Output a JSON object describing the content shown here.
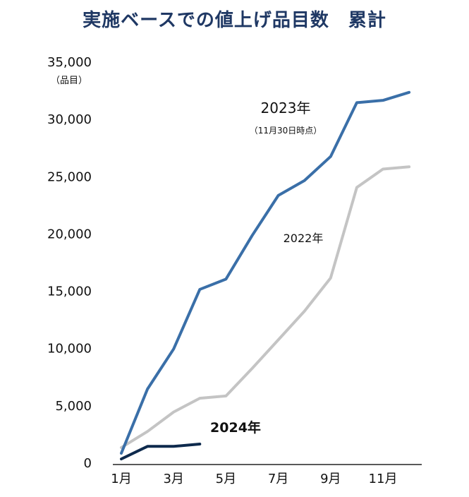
{
  "chart_data": {
    "type": "line",
    "title": "実施ベースでの値上げ品目数　累計",
    "unit_label": "（品目）",
    "ylim": [
      0,
      35000
    ],
    "yticks": [
      0,
      5000,
      10000,
      15000,
      20000,
      25000,
      30000,
      35000
    ],
    "ytick_labels": [
      "0",
      "5,000",
      "10,000",
      "15,000",
      "20,000",
      "25,000",
      "30,000",
      "35,000"
    ],
    "months": [
      1,
      2,
      3,
      4,
      5,
      6,
      7,
      8,
      9,
      10,
      11,
      12
    ],
    "xtick_labels": [
      "1月",
      "3月",
      "5月",
      "7月",
      "9月",
      "11月"
    ],
    "xtick_months": [
      1,
      3,
      5,
      7,
      9,
      11
    ],
    "grid": false,
    "series": [
      {
        "name": "2023年",
        "note": "（11月30日時点）",
        "color": "#3a6fa8",
        "values": [
          800,
          6400,
          9900,
          15100,
          16000,
          19800,
          23300,
          24600,
          26700,
          31400,
          31600,
          32300
        ]
      },
      {
        "name": "2022年",
        "color": "#c4c4c4",
        "values": [
          1300,
          2700,
          4400,
          5600,
          5800,
          8200,
          10700,
          13200,
          16100,
          24000,
          25600,
          25800
        ]
      },
      {
        "name": "2024年",
        "color": "#0e2a4d",
        "values": [
          300,
          1400,
          1400,
          1600
        ]
      }
    ]
  }
}
